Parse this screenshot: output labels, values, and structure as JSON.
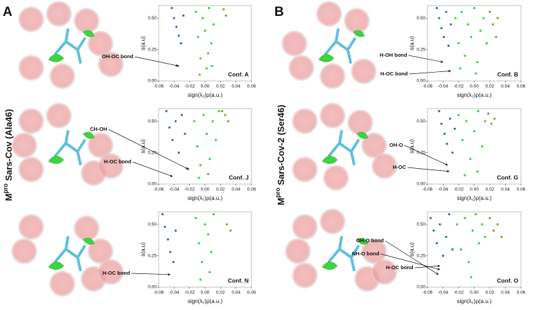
{
  "panels": [
    {
      "letter": "A",
      "prefix": "M",
      "sup": "pro",
      "text": " Sars-Cov (Ala46)"
    },
    {
      "letter": "B",
      "prefix": "M",
      "sup": "pro",
      "text": " Sars-Cov-2 (Ser46)"
    }
  ],
  "chart_data": [
    {
      "type": "scatter",
      "annotation": "Conf. A",
      "xlabel": "sign(λ₂)ρ(a.u.)",
      "ylabel": "s(a.u)",
      "xlim": [
        -0.06,
        0.06
      ],
      "ylim": [
        0,
        0.6
      ],
      "xticks": [
        -0.06,
        -0.04,
        -0.02,
        {
          "value": 0,
          "label": "0.00"
        },
        0.02,
        0.04,
        0.06
      ],
      "yticks": [
        {
          "value": 0,
          "label": "0.00"
        },
        {
          "value": 0.25,
          "label": "0.25"
        },
        {
          "value": 0.5,
          "label": "0.50"
        }
      ],
      "labels": [
        {
          "text": "OH-OC bond",
          "x": -0.035,
          "y": 0.12
        }
      ],
      "series": [
        {
          "color": "#2f6fa6",
          "x": [
            -0.043,
            -0.04,
            -0.037,
            -0.034,
            -0.031,
            -0.028,
            -0.035
          ],
          "values": [
            0.58,
            0.5,
            0.43,
            0.36,
            0.3,
            0.52,
            0.12
          ]
        },
        {
          "color": "#3dcc3b",
          "x": [
            -0.012,
            -0.009,
            -0.006,
            -0.003,
            0,
            0.002,
            0.005,
            0.008,
            0.011,
            -0.007,
            0.004,
            0.009
          ],
          "values": [
            0.55,
            0.35,
            0.18,
            0.5,
            0.4,
            0.1,
            0.58,
            0.3,
            0.45,
            0.05,
            0.22,
            0.12
          ]
        },
        {
          "color": "#8c9a2c",
          "x": [
            0.024,
            0.027
          ],
          "values": [
            0.57,
            0.52
          ]
        }
      ]
    },
    {
      "type": "scatter",
      "annotation": "Conf. J",
      "xlabel": "sign(λ₂)ρ(a.u.)",
      "ylabel": "s(a.u)",
      "xlim": [
        -0.06,
        0.06
      ],
      "ylim": [
        0,
        0.6
      ],
      "xticks": [
        -0.06,
        -0.04,
        -0.02,
        {
          "value": 0,
          "label": "0.00"
        },
        0.02,
        0.04,
        0.06
      ],
      "yticks": [
        {
          "value": 0,
          "label": "0.00"
        },
        {
          "value": 0.25,
          "label": "0.25"
        },
        {
          "value": 0.5,
          "label": "0.50"
        }
      ],
      "labels": [
        {
          "text": "CH-OH",
          "x": -0.022,
          "y": 0.12
        },
        {
          "text": "H-OC  bond",
          "x": -0.042,
          "y": 0.06
        }
      ],
      "series": [
        {
          "color": "#2f6fa6",
          "x": [
            -0.05,
            -0.046,
            -0.042,
            -0.038,
            -0.034,
            -0.03,
            -0.026,
            -0.022
          ],
          "values": [
            0.58,
            0.45,
            0.35,
            0.5,
            0.25,
            0.55,
            0.4,
            0.12
          ]
        },
        {
          "color": "#3dcc3b",
          "x": [
            -0.014,
            -0.01,
            -0.006,
            -0.002,
            0.002,
            0.006,
            0.01,
            0.014,
            0.018,
            -0.008,
            0.004
          ],
          "values": [
            0.5,
            0.3,
            0.15,
            0.55,
            0.4,
            0.2,
            0.5,
            0.35,
            0.58,
            0.05,
            0.08
          ]
        },
        {
          "color": "#8c9a2c",
          "x": [
            0.022,
            0.026,
            0.03
          ],
          "values": [
            0.58,
            0.55,
            0.5
          ]
        }
      ]
    },
    {
      "type": "scatter",
      "annotation": "Conf. N",
      "xlabel": "sign(λ₂)ρ(a.u.)",
      "ylabel": "s(a.u)",
      "xlim": [
        -0.06,
        0.06
      ],
      "ylim": [
        0,
        0.6
      ],
      "xticks": [
        -0.06,
        -0.04,
        -0.02,
        {
          "value": 0,
          "label": "0.00"
        },
        0.02,
        0.04,
        0.06
      ],
      "yticks": [
        {
          "value": 0,
          "label": "0.00"
        },
        {
          "value": 0.25,
          "label": "0.25"
        },
        {
          "value": 0.5,
          "label": "0.50"
        }
      ],
      "labels": [
        {
          "text": "H-OC  bond",
          "x": -0.045,
          "y": 0.1
        }
      ],
      "series": [
        {
          "color": "#2f6fa6",
          "x": [
            -0.055,
            -0.052,
            -0.048,
            -0.045,
            -0.041,
            -0.038
          ],
          "values": [
            0.58,
            0.48,
            0.38,
            0.28,
            0.2,
            0.45
          ]
        },
        {
          "color": "#3dcc3b",
          "x": [
            -0.012,
            -0.008,
            -0.004,
            0,
            0.004,
            0.008,
            0.011,
            -0.006,
            0.006
          ],
          "values": [
            0.55,
            0.35,
            0.2,
            0.5,
            0.42,
            0.28,
            0.58,
            0.06,
            0.12
          ]
        },
        {
          "color": "#8c9a2c",
          "x": [
            0.028,
            0.033
          ],
          "values": [
            0.5,
            0.45
          ]
        }
      ]
    },
    {
      "type": "scatter",
      "annotation": "Conf. B",
      "xlabel": "sign(λ₂)ρ(a.u.)",
      "ylabel": "s(a.u)",
      "xlim": [
        -0.06,
        0.06
      ],
      "ylim": [
        0,
        0.6
      ],
      "xticks": [
        -0.06,
        -0.04,
        -0.02,
        {
          "value": 0,
          "label": "0.00"
        },
        0.02,
        0.04,
        0.06
      ],
      "yticks": [
        {
          "value": 0,
          "label": "0.00"
        },
        {
          "value": 0.25,
          "label": "0.25"
        },
        {
          "value": 0.5,
          "label": "0.50"
        }
      ],
      "labels": [
        {
          "text": "H-OH  bond",
          "x": -0.04,
          "y": 0.15
        },
        {
          "text": "H-OC bond",
          "x": -0.03,
          "y": 0.08
        }
      ],
      "series": [
        {
          "color": "#2f6fa6",
          "x": [
            -0.048,
            -0.045,
            -0.042,
            -0.039,
            -0.036,
            -0.033,
            -0.03
          ],
          "values": [
            0.58,
            0.5,
            0.42,
            0.35,
            0.55,
            0.28,
            0.45
          ]
        },
        {
          "color": "#3dcc3b",
          "x": [
            -0.024,
            -0.02,
            -0.016,
            -0.012,
            -0.008,
            -0.004,
            0,
            0.004,
            0.008,
            0.012,
            0.016,
            -0.018,
            0.002
          ],
          "values": [
            0.5,
            0.3,
            0.55,
            0.2,
            0.45,
            0.35,
            0.58,
            0.15,
            0.4,
            0.5,
            0.3,
            0.1,
            0.06
          ]
        },
        {
          "color": "#8c9a2c",
          "x": [
            0.02,
            0.024,
            0.028,
            0.03
          ],
          "values": [
            0.55,
            0.45,
            0.35,
            0.5
          ]
        }
      ]
    },
    {
      "type": "scatter",
      "annotation": "Conf. G",
      "xlabel": "sign(λ₂)ρ(a.u.)",
      "ylabel": "s(a.u)",
      "xlim": [
        -0.06,
        0.06
      ],
      "ylim": [
        0,
        0.6
      ],
      "xticks": [
        -0.06,
        -0.04,
        -0.02,
        {
          "value": 0,
          "label": "0.00"
        },
        0.02,
        0.04,
        0.06
      ],
      "yticks": [
        {
          "value": 0,
          "label": "0.00"
        },
        {
          "value": 0.25,
          "label": "0.25"
        },
        {
          "value": 0.5,
          "label": "0.50"
        }
      ],
      "labels": [
        {
          "text": "OH-O",
          "x": -0.034,
          "y": 0.15
        },
        {
          "text": "H-OC",
          "x": -0.032,
          "y": 0.1
        }
      ],
      "series": [
        {
          "color": "#2f6fa6",
          "x": [
            -0.045,
            -0.042,
            -0.038,
            -0.035,
            -0.031,
            -0.028,
            -0.025
          ],
          "values": [
            0.58,
            0.48,
            0.4,
            0.32,
            0.52,
            0.25,
            0.44
          ]
        },
        {
          "color": "#3dcc3b",
          "x": [
            -0.02,
            -0.015,
            -0.01,
            -0.005,
            0,
            0.005,
            0.01,
            0.014,
            -0.012,
            0.004
          ],
          "values": [
            0.55,
            0.35,
            0.5,
            0.2,
            0.42,
            0.58,
            0.3,
            0.5,
            0.07,
            0.1
          ]
        },
        {
          "color": "#8c9a2c",
          "x": [
            0.018,
            0.022,
            0.026
          ],
          "values": [
            0.56,
            0.48,
            0.52
          ]
        }
      ]
    },
    {
      "type": "scatter",
      "annotation": "Conf. O",
      "xlabel": "sign(λ₂)ρ(a.u.)",
      "ylabel": "s(a.u)",
      "xlim": [
        -0.06,
        0.06
      ],
      "ylim": [
        0,
        0.6
      ],
      "xticks": [
        -0.06,
        -0.04,
        -0.02,
        {
          "value": 0,
          "label": "0.00"
        },
        0.02,
        0.04,
        0.06
      ],
      "yticks": [
        {
          "value": 0,
          "label": "0.00"
        },
        {
          "value": 0.25,
          "label": "0.25"
        },
        {
          "value": 0.5,
          "label": "0.50"
        }
      ],
      "labels": [
        {
          "text": "OH-O bond",
          "x": -0.046,
          "y": 0.1
        },
        {
          "text": "NH-O bond",
          "x": -0.044,
          "y": 0.14
        },
        {
          "text": "H-OC  bond",
          "x": -0.044,
          "y": 0.17
        }
      ],
      "series": [
        {
          "color": "#2f6fa6",
          "x": [
            -0.056,
            -0.052,
            -0.048,
            -0.044,
            -0.04,
            -0.036,
            -0.032,
            -0.028
          ],
          "values": [
            0.55,
            0.45,
            0.35,
            0.5,
            0.25,
            0.4,
            0.58,
            0.3
          ]
        },
        {
          "color": "#3dcc3b",
          "x": [
            -0.022,
            -0.017,
            -0.012,
            -0.007,
            -0.002,
            0.002,
            0.006,
            0.01,
            0.014,
            -0.004
          ],
          "values": [
            0.5,
            0.3,
            0.55,
            0.2,
            0.45,
            0.58,
            0.35,
            0.5,
            0.4,
            0.08
          ]
        },
        {
          "color": "#8c9a2c",
          "x": [
            0.02,
            0.025,
            0.03,
            0.035
          ],
          "values": [
            0.55,
            0.45,
            0.5,
            0.4
          ]
        }
      ]
    }
  ]
}
